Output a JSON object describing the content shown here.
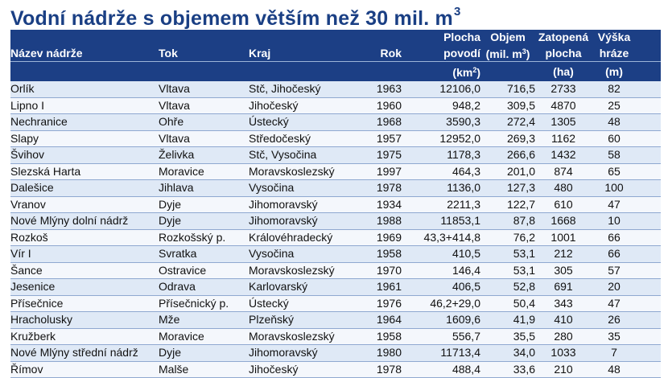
{
  "title": {
    "text": "Vodní nádrže s objemem větším než 30 mil. m",
    "superscript": "3"
  },
  "header": {
    "row1": {
      "plocha": "Plocha",
      "objem": "Objem",
      "zatopena": "Zatopená",
      "vyska": "Výška"
    },
    "row2": {
      "nazev": "Název nádrže",
      "tok": "Tok",
      "kraj": "Kraj",
      "rok": "Rok",
      "plocha": "povodí",
      "objem_prefix": "(mil. m",
      "objem_sup": "3",
      "objem_suffix": ")",
      "zatopena": "plocha",
      "vyska": "hráze"
    },
    "row3": {
      "plocha_prefix": "(km",
      "plocha_sup": "2",
      "plocha_suffix": ")",
      "zatopena": "(ha)",
      "vyska": "(m)"
    }
  },
  "rows": [
    {
      "nazev": "Orlík",
      "tok": "Vltava",
      "kraj": "Stč, Jihočeský",
      "rok": "1963",
      "plocha": "12106,0",
      "objem": "716,5",
      "zatopena": "2733",
      "vyska": "82"
    },
    {
      "nazev": "Lipno I",
      "tok": "Vltava",
      "kraj": "Jihočeský",
      "rok": "1960",
      "plocha": "948,2",
      "objem": "309,5",
      "zatopena": "4870",
      "vyska": "25"
    },
    {
      "nazev": "Nechranice",
      "tok": "Ohře",
      "kraj": "Ústecký",
      "rok": "1968",
      "plocha": "3590,3",
      "objem": "272,4",
      "zatopena": "1305",
      "vyska": "48"
    },
    {
      "nazev": "Slapy",
      "tok": "Vltava",
      "kraj": "Středočeský",
      "rok": "1957",
      "plocha": "12952,0",
      "objem": "269,3",
      "zatopena": "1162",
      "vyska": "60"
    },
    {
      "nazev": "Švihov",
      "tok": "Želivka",
      "kraj": "Stč, Vysočina",
      "rok": "1975",
      "plocha": "1178,3",
      "objem": "266,6",
      "zatopena": "1432",
      "vyska": "58"
    },
    {
      "nazev": "Slezská Harta",
      "tok": "Moravice",
      "kraj": "Moravskoslezský",
      "rok": "1997",
      "plocha": "464,3",
      "objem": "201,0",
      "zatopena": "874",
      "vyska": "65"
    },
    {
      "nazev": "Dalešice",
      "tok": "Jihlava",
      "kraj": "Vysočina",
      "rok": "1978",
      "plocha": "1136,0",
      "objem": "127,3",
      "zatopena": "480",
      "vyska": "100"
    },
    {
      "nazev": "Vranov",
      "tok": "Dyje",
      "kraj": "Jihomoravský",
      "rok": "1934",
      "plocha": "2211,3",
      "objem": "122,7",
      "zatopena": "610",
      "vyska": "47"
    },
    {
      "nazev": "Nové Mlýny dolní nádrž",
      "tok": "Dyje",
      "kraj": "Jihomoravský",
      "rok": "1988",
      "plocha": "11853,1",
      "objem": "87,8",
      "zatopena": "1668",
      "vyska": "10"
    },
    {
      "nazev": "Rozkoš",
      "tok": "Rozkošský p.",
      "kraj": "Královéhradecký",
      "rok": "1969",
      "plocha": "43,3+414,8",
      "objem": "76,2",
      "zatopena": "1001",
      "vyska": "66"
    },
    {
      "nazev": "Vír I",
      "tok": "Svratka",
      "kraj": "Vysočina",
      "rok": "1958",
      "plocha": "410,5",
      "objem": "53,1",
      "zatopena": "212",
      "vyska": "66"
    },
    {
      "nazev": "Šance",
      "tok": "Ostravice",
      "kraj": "Moravskoslezský",
      "rok": "1970",
      "plocha": "146,4",
      "objem": "53,1",
      "zatopena": "305",
      "vyska": "57"
    },
    {
      "nazev": "Jesenice",
      "tok": "Odrava",
      "kraj": "Karlovarský",
      "rok": "1961",
      "plocha": "406,5",
      "objem": "52,8",
      "zatopena": "691",
      "vyska": "20"
    },
    {
      "nazev": "Přísečnice",
      "tok": "Přísečnický p.",
      "kraj": "Ústecký",
      "rok": "1976",
      "plocha": "46,2+29,0",
      "objem": "50,4",
      "zatopena": "343",
      "vyska": "47"
    },
    {
      "nazev": "Hracholusky",
      "tok": "Mže",
      "kraj": "Plzeňský",
      "rok": "1964",
      "plocha": "1609,6",
      "objem": "41,9",
      "zatopena": "410",
      "vyska": "26"
    },
    {
      "nazev": "Kružberk",
      "tok": "Moravice",
      "kraj": "Moravskoslezský",
      "rok": "1958",
      "plocha": "556,7",
      "objem": "35,5",
      "zatopena": "280",
      "vyska": "35"
    },
    {
      "nazev": "Nové Mlýny střední nádrž",
      "tok": "Dyje",
      "kraj": "Jihomoravský",
      "rok": "1980",
      "plocha": "11713,4",
      "objem": "34,0",
      "zatopena": "1033",
      "vyska": "7"
    },
    {
      "nazev": "Římov",
      "tok": "Malše",
      "kraj": "Jihočeský",
      "rok": "1978",
      "plocha": "488,4",
      "objem": "33,6",
      "zatopena": "210",
      "vyska": "48"
    }
  ]
}
